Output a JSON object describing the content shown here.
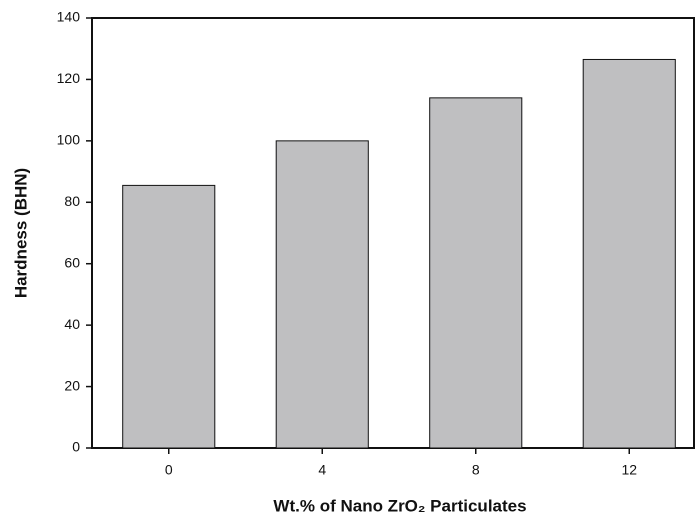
{
  "chart_data": {
    "type": "bar",
    "x_label": "Wt.% of Nano ZrO₂ Particulates",
    "y_label": "Hardness (BHN)",
    "categories": [
      "0",
      "4",
      "8",
      "12"
    ],
    "values": [
      85.5,
      100,
      114,
      126.5
    ],
    "color": "#bfbfc1",
    "ylim": [
      0,
      140
    ],
    "yticks": [
      0,
      20,
      40,
      60,
      80,
      100,
      120,
      140
    ],
    "grid": false
  }
}
